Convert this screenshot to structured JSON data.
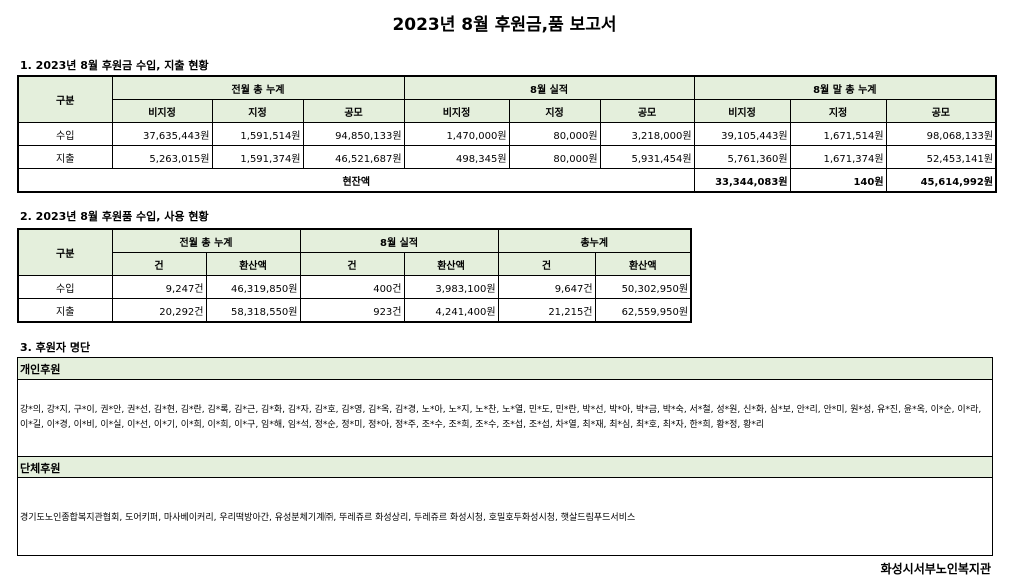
{
  "title": "2023년 8월 후원금,품 보고서",
  "section1": {
    "heading": "1. 2023년 8월 후원금 수입, 지출 현황",
    "row_header": "구분",
    "groups": [
      "전월 총 누계",
      "8월 실적",
      "8월 말 총 누계"
    ],
    "subheaders": [
      "비지정",
      "지정",
      "공모",
      "비지정",
      "지정",
      "공모",
      "비지정",
      "지정",
      "공모"
    ],
    "rows": [
      {
        "label": "수입",
        "values": [
          "37,635,443원",
          "1,591,514원",
          "94,850,133원",
          "1,470,000원",
          "80,000원",
          "3,218,000원",
          "39,105,443원",
          "1,671,514원",
          "98,068,133원"
        ]
      },
      {
        "label": "지출",
        "values": [
          "5,263,015원",
          "1,591,374원",
          "46,521,687원",
          "498,345원",
          "80,000원",
          "5,931,454원",
          "5,761,360원",
          "1,671,374원",
          "52,453,141원"
        ]
      }
    ],
    "balance_label": "현잔액",
    "balance_values": [
      "33,344,083원",
      "140원",
      "45,614,992원"
    ]
  },
  "section2": {
    "heading": "2. 2023년 8월 후원품 수입, 사용 현황",
    "row_header": "구분",
    "groups": [
      "전월 총 누계",
      "8월 실적",
      "총누계"
    ],
    "subheaders": [
      "건",
      "환산액",
      "건",
      "환산액",
      "건",
      "환산액"
    ],
    "rows": [
      {
        "label": "수입",
        "values": [
          "9,247건",
          "46,319,850원",
          "400건",
          "3,983,100원",
          "9,647건",
          "50,302,950원"
        ]
      },
      {
        "label": "지출",
        "values": [
          "20,292건",
          "58,318,550원",
          "923건",
          "4,241,400원",
          "21,215건",
          "62,559,950원"
        ]
      }
    ]
  },
  "section3": {
    "heading": "3. 후원자 명단",
    "individual_label": "개인후원",
    "individual_names": "강*의, 강*지, 구*이, 권*안, 권*선, 김*현, 김*란, 김*록, 김*근, 김*화, 김*자, 김*호, 김*영, 김*옥, 김*경, 노*아, 노*지, 노*찬, 노*열, 민*도, 민*란, 박*선, 박*아, 박*금, 박*숙, 서*철, 성*원, 신*화, 심*보, 안*리, 안*미, 원*성, 유*진, 윤*옥, 이*순, 이*라, 이*길, 이*경, 이*비, 이*실, 이*선, 이*기, 이*희, 이*희, 이*구, 임*해, 임*석, 정*순, 정*미, 정*아, 정*주, 조*수, 조*희, 조*수, 조*섭, 조*섭, 차*열, 최*재, 최*심, 최*호, 최*자, 한*희, 황*정, 황*리",
    "group_label": "단체후원",
    "group_names": "경기도노인종합복지관협회, 도어키퍼, 마사베이커리, 우리떡방아간, 유성분체기계㈜, 뚜레쥬르 화성상리, 두레쥬르 화성시청, 호밀호두화성시청, 햇살드림푸드서비스"
  },
  "footer_org": "화성시서부노인복지관",
  "colors": {
    "header_bg": "#e4efdc",
    "border": "#000000"
  }
}
